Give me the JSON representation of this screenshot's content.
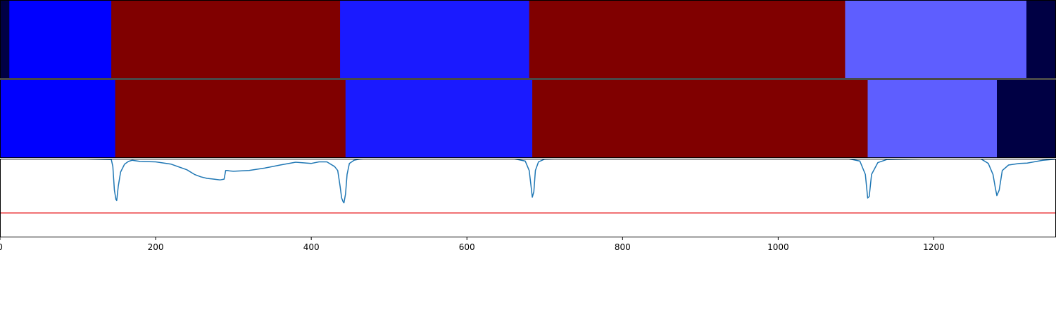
{
  "chart_data": [
    {
      "type": "heatmap",
      "panel": "top-bar",
      "segments": [
        {
          "start": 0,
          "end": 12,
          "color": "#000044"
        },
        {
          "start": 12,
          "end": 143,
          "color": "#0000ff"
        },
        {
          "start": 143,
          "end": 437,
          "color": "#800000"
        },
        {
          "start": 437,
          "end": 680,
          "color": "#1a1aff"
        },
        {
          "start": 680,
          "end": 1086,
          "color": "#800000"
        },
        {
          "start": 1086,
          "end": 1319,
          "color": "#5e5eff"
        },
        {
          "start": 1319,
          "end": 1357,
          "color": "#000044"
        }
      ]
    },
    {
      "type": "heatmap",
      "panel": "middle-bar",
      "segments": [
        {
          "start": 0,
          "end": 148,
          "color": "#0000ff"
        },
        {
          "start": 148,
          "end": 444,
          "color": "#800000"
        },
        {
          "start": 444,
          "end": 684,
          "color": "#1a1aff"
        },
        {
          "start": 684,
          "end": 1115,
          "color": "#800000"
        },
        {
          "start": 1115,
          "end": 1281,
          "color": "#5e5eff"
        },
        {
          "start": 1281,
          "end": 1357,
          "color": "#000044"
        }
      ]
    },
    {
      "type": "line",
      "panel": "bottom-plot",
      "xlim": [
        0,
        1357
      ],
      "ylim": [
        0,
        1
      ],
      "x_ticks": [
        0,
        200,
        400,
        600,
        800,
        1000,
        1200
      ],
      "x_tick_labels": [
        "0",
        "200",
        "400",
        "600",
        "800",
        "1000",
        "1200"
      ],
      "threshold": 0.31,
      "threshold_color": "#e8262a",
      "series": [
        {
          "color": "#1f77b4",
          "x": [
            0,
            100,
            143,
            145,
            147,
            149,
            150,
            152,
            155,
            160,
            165,
            170,
            180,
            200,
            220,
            240,
            250,
            258,
            266,
            275,
            283,
            288,
            290,
            292,
            295,
            300,
            320,
            340,
            360,
            380,
            400,
            410,
            420,
            430,
            434,
            437,
            439,
            441,
            442,
            444,
            446,
            449,
            455,
            462,
            470,
            490,
            520,
            600,
            660,
            675,
            680,
            683,
            684,
            686,
            688,
            692,
            700,
            720,
            800,
            900,
            1000,
            1090,
            1105,
            1112,
            1114,
            1115,
            1117,
            1120,
            1128,
            1140,
            1200,
            1260,
            1270,
            1276,
            1279,
            1281,
            1284,
            1288,
            1296,
            1310,
            1320,
            1340,
            1357
          ],
          "y": [
            1.0,
            1.0,
            0.99,
            0.9,
            0.6,
            0.48,
            0.47,
            0.65,
            0.83,
            0.93,
            0.965,
            0.98,
            0.965,
            0.96,
            0.93,
            0.86,
            0.8,
            0.77,
            0.75,
            0.74,
            0.73,
            0.74,
            0.85,
            0.85,
            0.845,
            0.84,
            0.85,
            0.88,
            0.92,
            0.955,
            0.94,
            0.96,
            0.96,
            0.9,
            0.85,
            0.65,
            0.5,
            0.45,
            0.44,
            0.55,
            0.8,
            0.94,
            0.98,
            0.995,
            1.0,
            1.0,
            1.0,
            1.0,
            1.0,
            0.97,
            0.85,
            0.6,
            0.51,
            0.58,
            0.85,
            0.96,
            0.995,
            1.0,
            1.0,
            1.0,
            1.0,
            1.0,
            0.97,
            0.8,
            0.6,
            0.5,
            0.52,
            0.8,
            0.95,
            0.99,
            1.0,
            1.0,
            0.94,
            0.8,
            0.63,
            0.53,
            0.6,
            0.85,
            0.92,
            0.94,
            0.945,
            0.98,
            0.995
          ]
        }
      ]
    }
  ]
}
